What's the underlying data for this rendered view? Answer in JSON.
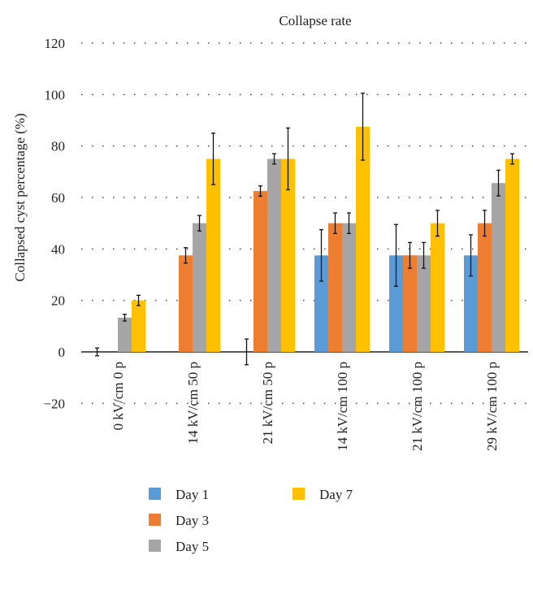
{
  "chart_data": {
    "type": "bar",
    "title": "Collapse rate",
    "xlabel": "",
    "ylabel": "Collapsed cyst percentage (%)",
    "ylim": [
      -20,
      120
    ],
    "yticks": [
      -20,
      0,
      20,
      40,
      60,
      80,
      100,
      120
    ],
    "grid": "dotted horizontal",
    "legend_position": "bottom",
    "categories": [
      "0 kV/cm 0 p",
      "14 kV/cm 50 p",
      "21 kV/cm 50 p",
      "14 kV/cm 100 p",
      "21 kV/cm 100 p",
      "29 kV/cm 100 p"
    ],
    "series": [
      {
        "name": "Day 1",
        "color": "#5b9bd5",
        "values": [
          0,
          0,
          0,
          37.5,
          37.5,
          37.5
        ],
        "errors": [
          1.5,
          0,
          5,
          10,
          12,
          8
        ]
      },
      {
        "name": "Day 3",
        "color": "#ed7d31",
        "values": [
          0,
          37.5,
          62.5,
          50,
          37.5,
          50
        ],
        "errors": [
          0,
          3,
          2,
          4,
          5,
          5
        ]
      },
      {
        "name": "Day 5",
        "color": "#a5a5a5",
        "values": [
          13.3,
          50,
          75,
          50,
          37.5,
          65.6
        ],
        "errors": [
          1.3,
          3,
          2,
          4,
          5,
          5
        ]
      },
      {
        "name": "Day 7",
        "color": "#ffc000",
        "values": [
          20,
          75,
          75,
          87.5,
          50,
          75
        ],
        "errors": [
          2,
          10,
          12,
          13,
          5,
          2
        ]
      }
    ]
  }
}
